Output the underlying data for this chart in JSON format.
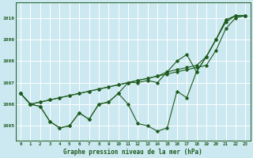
{
  "background_color": "#cce8f0",
  "grid_color": "#ffffff",
  "line_color": "#1e5c1e",
  "title": "Graphe pression niveau de la mer (hPa)",
  "ylabel_values": [
    1005,
    1006,
    1007,
    1008,
    1009,
    1010
  ],
  "xlim": [
    -0.5,
    23.5
  ],
  "ylim": [
    1004.3,
    1010.7
  ],
  "x": [
    0,
    1,
    2,
    3,
    4,
    5,
    6,
    7,
    8,
    9,
    10,
    11,
    12,
    13,
    14,
    15,
    16,
    17,
    18,
    19,
    20,
    21,
    22,
    23
  ],
  "series": [
    [
      1006.5,
      1006.0,
      1006.1,
      1006.2,
      1006.3,
      1006.4,
      1006.5,
      1006.6,
      1006.7,
      1006.8,
      1006.9,
      1007.0,
      1007.1,
      1007.2,
      1007.3,
      1007.4,
      1007.5,
      1007.6,
      1007.7,
      1007.8,
      1008.5,
      1009.5,
      1010.0,
      1010.1
    ],
    [
      1006.5,
      1006.0,
      1006.1,
      1006.2,
      1006.3,
      1006.4,
      1006.5,
      1006.6,
      1006.7,
      1006.8,
      1006.9,
      1007.0,
      1007.1,
      1007.2,
      1007.3,
      1007.5,
      1007.6,
      1007.7,
      1007.8,
      1008.2,
      1009.0,
      1009.8,
      1010.1,
      1010.1
    ],
    [
      1006.5,
      1006.0,
      1005.9,
      1005.2,
      1004.9,
      1005.0,
      1005.6,
      1005.3,
      1006.0,
      1006.1,
      1006.5,
      1007.0,
      1007.0,
      1007.1,
      1007.0,
      1007.5,
      1008.0,
      1008.3,
      1007.5,
      1008.2,
      1009.0,
      1009.9,
      1010.1,
      1010.1
    ],
    [
      1006.5,
      1006.0,
      1005.9,
      1005.2,
      1004.9,
      1005.0,
      1005.6,
      1005.3,
      1006.0,
      1006.1,
      1006.5,
      1006.0,
      1005.1,
      1005.0,
      1004.75,
      1004.9,
      1006.6,
      1006.3,
      1007.5,
      1008.2,
      1009.0,
      1009.9,
      1010.1,
      1010.1
    ]
  ]
}
